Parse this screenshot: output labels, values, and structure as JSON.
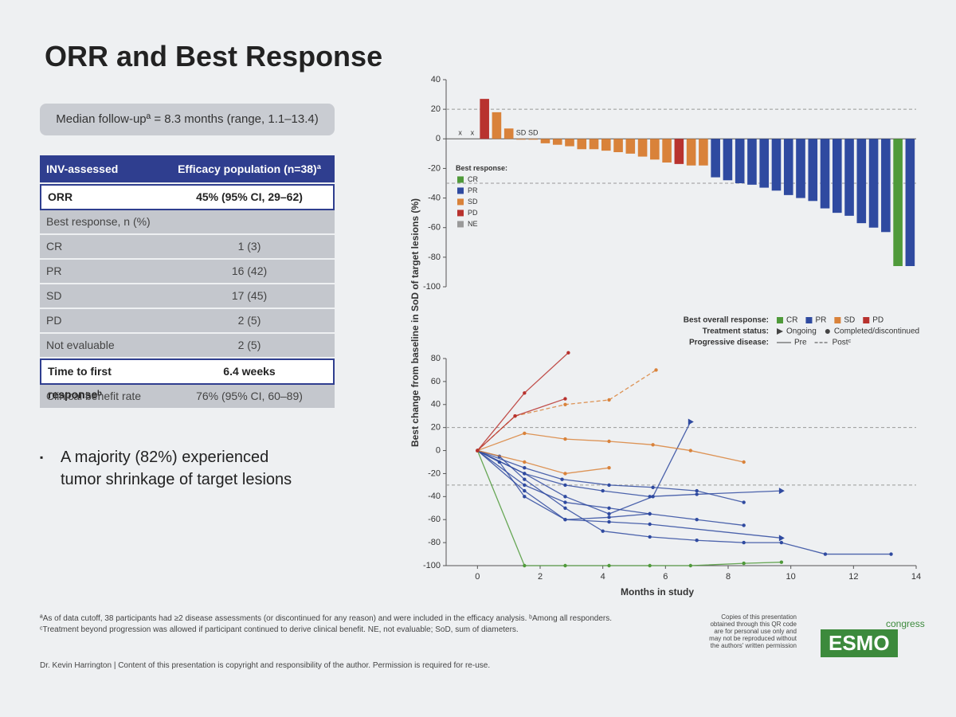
{
  "slide_title": "ORR and Best Response",
  "followup": "Median follow-upª = 8.3 months (range, 1.1–13.4)",
  "table": {
    "header": [
      "INV-assessed",
      "Efficacy population (n=38)ª"
    ],
    "rows": [
      [
        "ORR",
        "45% (95% CI, 29–62)"
      ],
      [
        "Best response, n (%)"
      ],
      [
        "CR",
        "1 (3)"
      ],
      [
        "PR",
        "16 (42)"
      ],
      [
        "SD",
        "17 (45)"
      ],
      [
        "PD",
        "2 (5)"
      ],
      [
        "Not evaluable",
        "2 (5)"
      ],
      [
        "Time to first responseᵇ",
        "6.4 weeks"
      ],
      [
        "Clinical benefit rate",
        "76% (95% CI, 60–89)"
      ]
    ]
  },
  "bullet": "A majority (82%) experienced tumor shrinkage of target lesions",
  "footnotes": [
    "ªAs of data cutoff, 38 participants had ≥2 disease assessments (or discontinued for any reason) and were included in the efficacy analysis. ᵇAmong all responders.",
    "ᶜTreatment beyond progression was allowed if participant continued to derive clinical benefit. NE, not evaluable; SoD, sum of diameters."
  ],
  "presenter": "Dr. Kevin Harrington | Content of this presentation is copyright and responsibility of the author. Permission is required for re-use.",
  "qr_note": "Copies of this presentation obtained through this QR code are for personal use only and may not be reproduced without the authors' written permission",
  "logo": {
    "name": "ESMO",
    "sub": "congress"
  },
  "chart_data": [
    {
      "type": "waterfall",
      "ylim": [
        -100,
        40
      ],
      "yticks": [
        -100,
        -80,
        -60,
        -40,
        -20,
        0,
        20,
        40
      ],
      "ref_lines": [
        20,
        -30
      ],
      "legend_title": "Best response:",
      "legend_corner": "lower left",
      "annotations": [
        "x",
        "x",
        "SD",
        "SD"
      ],
      "series": [
        {
          "name": "CR",
          "color": "#4f9a3a",
          "values": [
            null,
            null,
            null,
            null,
            null,
            null,
            null,
            null,
            null,
            null,
            null,
            null,
            null,
            null,
            null,
            null,
            null,
            null,
            null,
            null,
            null,
            null,
            null,
            null,
            null,
            null,
            null,
            null,
            null,
            null,
            null,
            null,
            null,
            null,
            null,
            null,
            -86,
            null
          ]
        },
        {
          "name": "PR",
          "color": "#2f4aa0",
          "values": [
            null,
            null,
            null,
            null,
            null,
            null,
            null,
            null,
            null,
            null,
            null,
            null,
            null,
            null,
            null,
            null,
            null,
            null,
            null,
            null,
            null,
            -26,
            -28,
            -30,
            -31,
            -33,
            -35,
            -38,
            -40,
            -42,
            -47,
            -50,
            -52,
            -57,
            -60,
            -63,
            null,
            -86
          ]
        },
        {
          "name": "SD",
          "color": "#d9823a",
          "values": [
            null,
            null,
            null,
            18,
            7,
            0,
            0,
            -3,
            -4,
            -5,
            -7,
            -7,
            -8,
            -9,
            -10,
            -12,
            -14,
            -16,
            null,
            -18,
            -18,
            null,
            null,
            null,
            null,
            null,
            null,
            null,
            null,
            null,
            null,
            null,
            null,
            null,
            null,
            null,
            null,
            null
          ]
        },
        {
          "name": "PD",
          "color": "#b8322e",
          "values": [
            null,
            null,
            27,
            null,
            null,
            null,
            null,
            null,
            null,
            null,
            null,
            null,
            null,
            null,
            null,
            null,
            null,
            null,
            -17,
            null,
            null,
            null,
            null,
            null,
            null,
            null,
            null,
            null,
            null,
            null,
            null,
            null,
            null,
            null,
            null,
            null,
            null,
            null
          ]
        },
        {
          "name": "NE",
          "color": "#9a9a9a",
          "values": [
            null,
            null,
            null,
            null,
            null,
            null,
            null,
            null,
            null,
            null,
            null,
            null,
            null,
            null,
            null,
            null,
            null,
            null,
            null,
            null,
            null,
            null,
            null,
            null,
            null,
            null,
            null,
            null,
            null,
            null,
            null,
            null,
            null,
            null,
            null,
            null,
            null,
            null
          ]
        }
      ]
    },
    {
      "type": "spider",
      "ylabel": "Best change from baseline in SoD of target lesions (%)",
      "xlabel": "Months in study",
      "xlim": [
        -1,
        14
      ],
      "xticks": [
        0,
        2,
        4,
        6,
        8,
        10,
        12,
        14
      ],
      "ylim": [
        -100,
        80
      ],
      "yticks": [
        -100,
        -80,
        -60,
        -40,
        -20,
        0,
        20,
        40,
        60,
        80
      ],
      "ref_lines": [
        20,
        -30
      ],
      "legend_groups": [
        {
          "title": "Best overall response:",
          "items": [
            {
              "name": "CR",
              "color": "#4f9a3a"
            },
            {
              "name": "PR",
              "color": "#2f4aa0"
            },
            {
              "name": "SD",
              "color": "#d9823a"
            },
            {
              "name": "PD",
              "color": "#b8322e"
            }
          ]
        },
        {
          "title": "Treatment status:",
          "items": [
            {
              "name": "Ongoing",
              "marker": "arrow"
            },
            {
              "name": "Completed/discontinued",
              "marker": "dot"
            }
          ]
        },
        {
          "title": "Progressive disease:",
          "items": [
            {
              "name": "Pre",
              "dashed": false
            },
            {
              "name": "Postᶜ",
              "dashed": true
            }
          ]
        }
      ],
      "lines": [
        {
          "color": "#2f4aa0",
          "ongoing": false,
          "dashed": false,
          "x": [
            0,
            0.7,
            1.5,
            2.8,
            4,
            5.5,
            7,
            8.5,
            9.7,
            11.1,
            13.2
          ],
          "y": [
            0,
            -5,
            -25,
            -50,
            -70,
            -75,
            -78,
            -80,
            -80,
            -90,
            -90
          ]
        },
        {
          "color": "#2f4aa0",
          "ongoing": true,
          "dashed": false,
          "x": [
            0,
            0.7,
            1.5,
            2.8,
            4.2,
            5.5,
            9.7
          ],
          "y": [
            0,
            -10,
            -40,
            -60,
            -62,
            -64,
            -76
          ]
        },
        {
          "color": "#2f4aa0",
          "ongoing": false,
          "dashed": false,
          "x": [
            0,
            1.5,
            2.8,
            4.2,
            5.5,
            7,
            8.5
          ],
          "y": [
            0,
            -30,
            -45,
            -50,
            -55,
            -60,
            -65
          ]
        },
        {
          "color": "#2f4aa0",
          "ongoing": true,
          "dashed": false,
          "x": [
            0,
            1.5,
            2.8,
            4,
            5.5,
            7,
            9.7
          ],
          "y": [
            0,
            -20,
            -30,
            -35,
            -40,
            -38,
            -35
          ]
        },
        {
          "color": "#2f4aa0",
          "ongoing": false,
          "dashed": false,
          "x": [
            0,
            1.5,
            2.7,
            4.2,
            5.6,
            7,
            8.5
          ],
          "y": [
            0,
            -15,
            -25,
            -30,
            -32,
            -35,
            -45
          ]
        },
        {
          "color": "#2f4aa0",
          "ongoing": false,
          "dashed": false,
          "x": [
            0,
            1.5,
            2.8,
            4.2,
            5.5
          ],
          "y": [
            0,
            -35,
            -60,
            -58,
            -55
          ]
        },
        {
          "color": "#2f4aa0",
          "ongoing": true,
          "dashed": false,
          "x": [
            0,
            1.5,
            2.8,
            4.2,
            5.6,
            6.8
          ],
          "y": [
            0,
            -20,
            -40,
            -55,
            -40,
            25
          ]
        },
        {
          "color": "#4f9a3a",
          "ongoing": false,
          "dashed": false,
          "x": [
            0,
            1.5,
            2.8,
            4.2,
            5.5,
            6.8,
            8.5,
            9.7
          ],
          "y": [
            0,
            -100,
            -100,
            -100,
            -100,
            -100,
            -98,
            -97
          ]
        },
        {
          "color": "#d9823a",
          "ongoing": false,
          "dashed": true,
          "x": [
            0,
            1.2,
            2.8,
            4.2,
            5.7
          ],
          "y": [
            0,
            30,
            40,
            44,
            70
          ]
        },
        {
          "color": "#d9823a",
          "ongoing": false,
          "dashed": false,
          "x": [
            0,
            1.5,
            2.8,
            4.2,
            5.6,
            6.8,
            8.5
          ],
          "y": [
            0,
            15,
            10,
            8,
            5,
            0,
            -10
          ]
        },
        {
          "color": "#d9823a",
          "ongoing": false,
          "dashed": false,
          "x": [
            0,
            1.5,
            2.8,
            4.2
          ],
          "y": [
            0,
            -10,
            -20,
            -15
          ]
        },
        {
          "color": "#b8322e",
          "ongoing": false,
          "dashed": false,
          "x": [
            0,
            1.5,
            2.9
          ],
          "y": [
            0,
            50,
            85
          ]
        },
        {
          "color": "#b8322e",
          "ongoing": false,
          "dashed": false,
          "x": [
            0,
            1.2,
            2.8
          ],
          "y": [
            0,
            30,
            45
          ]
        }
      ]
    }
  ]
}
